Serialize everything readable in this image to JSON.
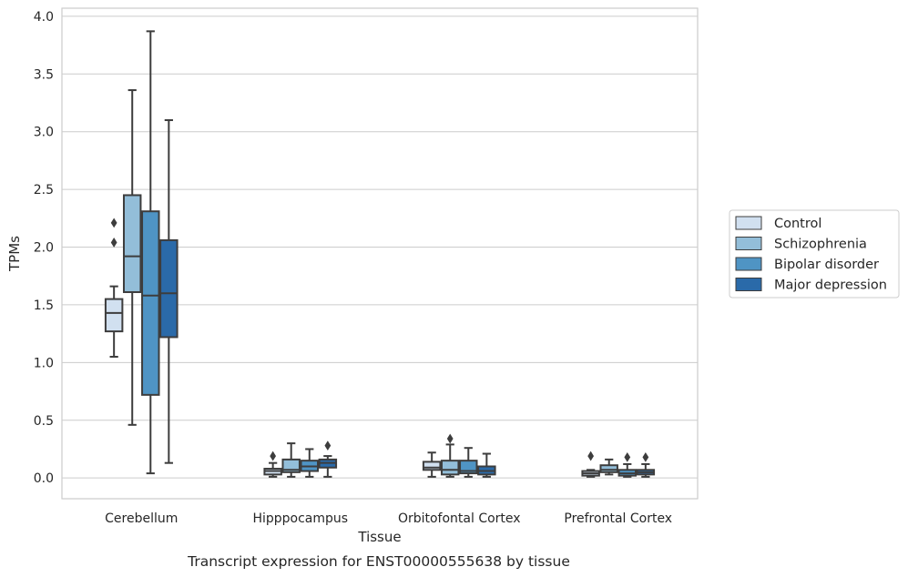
{
  "chart_data": {
    "type": "box",
    "caption": "Transcript expression for ENST00000555638 by tissue",
    "xlabel": "Tissue",
    "ylabel": "TPMs",
    "ylim": [
      -0.18,
      4.07
    ],
    "yticks": [
      0.0,
      0.5,
      1.0,
      1.5,
      2.0,
      2.5,
      3.0,
      3.5,
      4.0
    ],
    "ytick_labels": [
      "0.0",
      "0.5",
      "1.0",
      "1.5",
      "2.0",
      "2.5",
      "3.0",
      "3.5",
      "4.0"
    ],
    "grid": "horizontal",
    "legend_position": "right",
    "categories": [
      "Cerebellum",
      "Hipppocampus",
      "Orbitofontal Cortex",
      "Prefrontal Cortex"
    ],
    "series": [
      {
        "name": "Control",
        "color": "#d1e0f0",
        "boxes": [
          {
            "whislo": 1.05,
            "q1": 1.27,
            "med": 1.43,
            "q3": 1.55,
            "whishi": 1.66,
            "fliers": [
              2.04,
              2.21
            ]
          },
          {
            "whislo": 0.01,
            "q1": 0.03,
            "med": 0.06,
            "q3": 0.08,
            "whishi": 0.13,
            "fliers": [
              0.19
            ]
          },
          {
            "whislo": 0.01,
            "q1": 0.07,
            "med": 0.09,
            "q3": 0.14,
            "whishi": 0.22,
            "fliers": []
          },
          {
            "whislo": 0.01,
            "q1": 0.02,
            "med": 0.04,
            "q3": 0.06,
            "whishi": 0.07,
            "fliers": [
              0.19
            ]
          }
        ]
      },
      {
        "name": "Schizophrenia",
        "color": "#93bed9",
        "boxes": [
          {
            "whislo": 0.46,
            "q1": 1.61,
            "med": 1.92,
            "q3": 2.45,
            "whishi": 3.36,
            "fliers": []
          },
          {
            "whislo": 0.01,
            "q1": 0.05,
            "med": 0.07,
            "q3": 0.16,
            "whishi": 0.3,
            "fliers": []
          },
          {
            "whislo": 0.01,
            "q1": 0.03,
            "med": 0.07,
            "q3": 0.15,
            "whishi": 0.29,
            "fliers": [
              0.34
            ]
          },
          {
            "whislo": 0.03,
            "q1": 0.05,
            "med": 0.07,
            "q3": 0.11,
            "whishi": 0.16,
            "fliers": []
          }
        ]
      },
      {
        "name": "Bipolar disorder",
        "color": "#4f94c4",
        "boxes": [
          {
            "whislo": 0.04,
            "q1": 0.72,
            "med": 1.58,
            "q3": 2.31,
            "whishi": 3.87,
            "fliers": []
          },
          {
            "whislo": 0.01,
            "q1": 0.06,
            "med": 0.1,
            "q3": 0.15,
            "whishi": 0.25,
            "fliers": []
          },
          {
            "whislo": 0.01,
            "q1": 0.04,
            "med": 0.06,
            "q3": 0.15,
            "whishi": 0.26,
            "fliers": []
          },
          {
            "whislo": 0.01,
            "q1": 0.02,
            "med": 0.04,
            "q3": 0.07,
            "whishi": 0.12,
            "fliers": [
              0.18
            ]
          }
        ]
      },
      {
        "name": "Major depression",
        "color": "#2a6aa9",
        "boxes": [
          {
            "whislo": 0.13,
            "q1": 1.22,
            "med": 1.6,
            "q3": 2.06,
            "whishi": 3.1,
            "fliers": []
          },
          {
            "whislo": 0.01,
            "q1": 0.09,
            "med": 0.13,
            "q3": 0.16,
            "whishi": 0.19,
            "fliers": [
              0.28
            ]
          },
          {
            "whislo": 0.01,
            "q1": 0.03,
            "med": 0.06,
            "q3": 0.1,
            "whishi": 0.21,
            "fliers": []
          },
          {
            "whislo": 0.01,
            "q1": 0.03,
            "med": 0.05,
            "q3": 0.07,
            "whishi": 0.12,
            "fliers": [
              0.18
            ]
          }
        ]
      }
    ]
  },
  "colors": {
    "grid": "#cccccc",
    "frame": "#cccccc",
    "box_edge": "#3d3d3d",
    "legend_edge": "#cccccc"
  }
}
